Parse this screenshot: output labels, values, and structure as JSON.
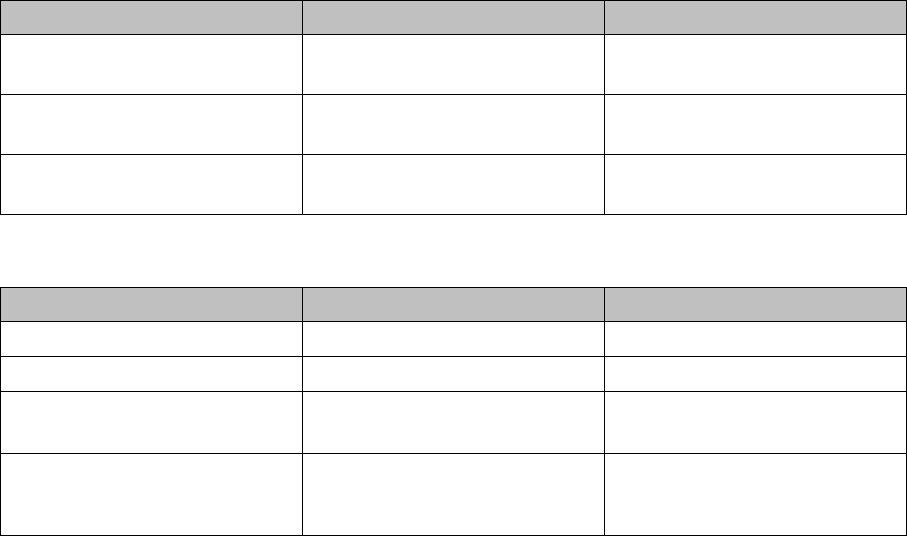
{
  "colors": {
    "header_bg": "#c0c0c0",
    "border": "#000000",
    "background": "#ffffff"
  },
  "tables": [
    {
      "headers": [
        "",
        "",
        ""
      ],
      "rows": [
        [
          "",
          "",
          ""
        ],
        [
          "",
          "",
          ""
        ],
        [
          "",
          "",
          ""
        ]
      ]
    },
    {
      "headers": [
        "",
        "",
        ""
      ],
      "rows": [
        [
          "",
          "",
          ""
        ],
        [
          "",
          "",
          ""
        ],
        [
          "",
          "",
          ""
        ],
        [
          "",
          "",
          ""
        ]
      ]
    }
  ]
}
